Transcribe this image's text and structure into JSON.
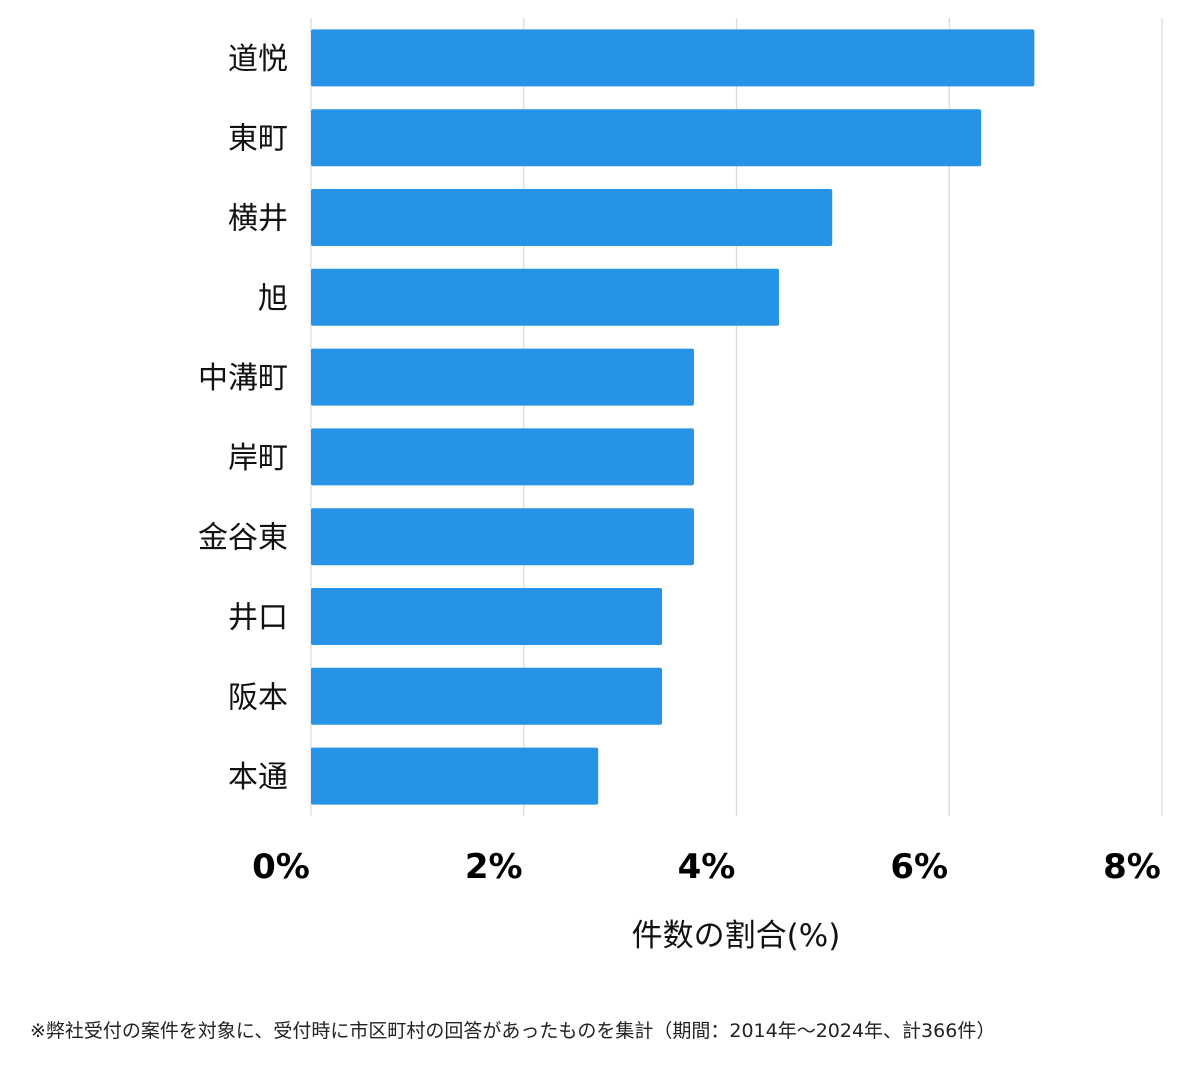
{
  "chart_data": {
    "type": "bar",
    "orientation": "horizontal",
    "categories": [
      "道悦",
      "東町",
      "横井",
      "旭",
      "中溝町",
      "岸町",
      "金谷東",
      "井口",
      "阪本",
      "本通"
    ],
    "values": [
      6.8,
      6.3,
      4.9,
      4.4,
      3.6,
      3.6,
      3.6,
      3.3,
      3.3,
      2.7
    ],
    "xlim": [
      0,
      8
    ],
    "x_ticks": [
      "0%",
      "2%",
      "4%",
      "6%",
      "8%"
    ],
    "xlabel": "件数の割合(%)",
    "ylabel": "",
    "title": "",
    "grid": "vertical",
    "bar_color": "#2793e6"
  },
  "footnote": "※弊社受付の案件を対象に、受付時に市区町村の回答があったものを集計（期間：2014年〜2024年、計366件）"
}
